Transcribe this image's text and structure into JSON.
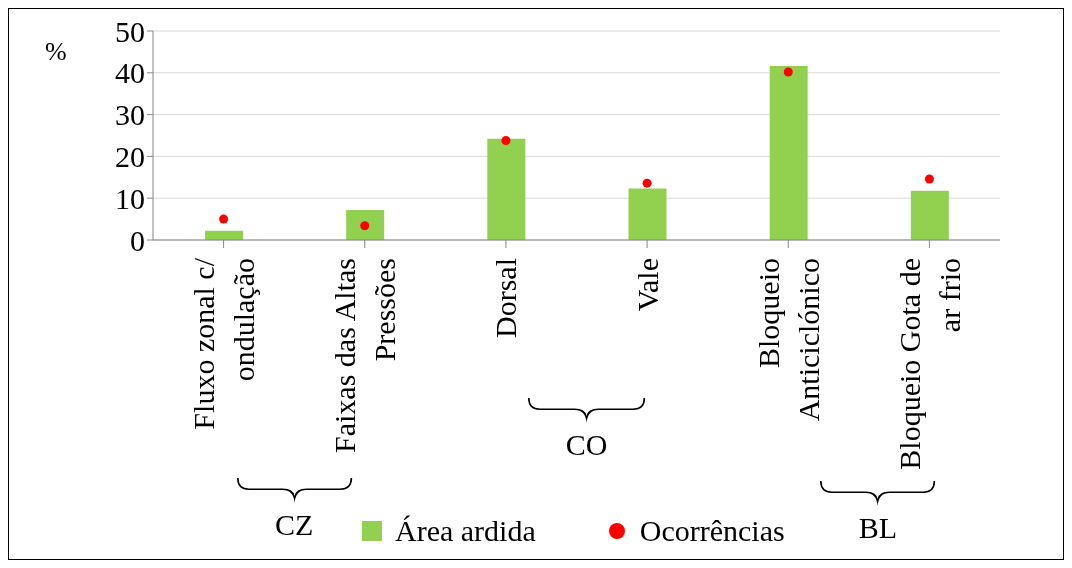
{
  "chart_data": {
    "type": "bar",
    "ylabel": "%",
    "categories": [
      "Fluxo zonal c/ ondulação",
      "Faixas das Altas Pressões",
      "Dorsal",
      "Vale",
      "Bloqueio Anticiclónico",
      "Bloqueio Gota de ar frio"
    ],
    "series": [
      {
        "name": "Área ardida",
        "color": "#92d050",
        "values": [
          2.2,
          7.2,
          24.2,
          12.3,
          41.6,
          11.8
        ]
      },
      {
        "name": "Ocorrências",
        "type": "scatter",
        "color": "#ff0000",
        "values": [
          5.0,
          3.4,
          23.8,
          13.6,
          40.2,
          14.6
        ]
      }
    ],
    "ylim": [
      0,
      50
    ],
    "yticks": [
      0,
      10,
      20,
      30,
      40,
      50
    ],
    "grid": "y",
    "legend": "bottom",
    "marker": "circle",
    "annotations": [
      "CZ",
      "CO",
      "BL"
    ]
  }
}
